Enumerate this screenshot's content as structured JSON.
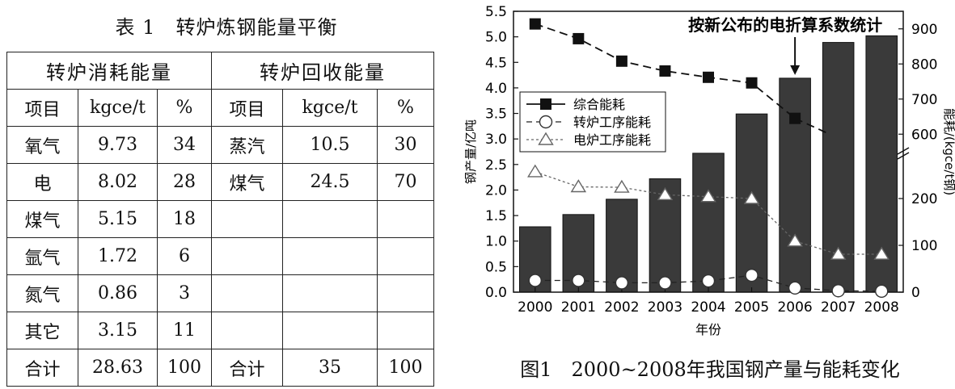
{
  "table": {
    "caption": "表 1　转炉炼钢能量平衡",
    "groups": [
      "转炉消耗能量",
      "转炉回收能量"
    ],
    "headers": [
      "项目",
      "kgce/t",
      "%",
      "项目",
      "kgce/t",
      "%"
    ],
    "rows": [
      [
        "氧气",
        "9.73",
        "34",
        "蒸汽",
        "10.5",
        "30"
      ],
      [
        "电",
        "8.02",
        "28",
        "煤气",
        "24.5",
        "70"
      ],
      [
        "煤气",
        "5.15",
        "18",
        "",
        "",
        ""
      ],
      [
        "氩气",
        "1.72",
        "6",
        "",
        "",
        ""
      ],
      [
        "氮气",
        "0.86",
        "3",
        "",
        "",
        ""
      ],
      [
        "其它",
        "3.15",
        "11",
        "",
        "",
        ""
      ],
      [
        "合计",
        "28.63",
        "100",
        "合计",
        "35",
        "100"
      ]
    ]
  },
  "figure_caption": "图1　2000~2008年我国钢产量与能耗变化",
  "chart_data": {
    "type": "bar",
    "categories": [
      "2000",
      "2001",
      "2002",
      "2003",
      "2004",
      "2005",
      "2006",
      "2007",
      "2008"
    ],
    "xlabel": "年份",
    "ylabel": "钢产量/亿吨",
    "ylabel_right": "能耗/(kgce/t钢)",
    "ylim": [
      0,
      5.5
    ],
    "yticks": [
      "0.0",
      "0.5",
      "1.0",
      "1.5",
      "2.0",
      "2.5",
      "3.0",
      "3.5",
      "4.0",
      "4.5",
      "5.0",
      "5.5"
    ],
    "y2_ticks_lower": [
      "0",
      "100",
      "200"
    ],
    "y2_ticks_upper": [
      "600",
      "700",
      "800",
      "900"
    ],
    "y2_segments": [
      {
        "range": [
          0,
          300
        ],
        "axis_frac": [
          0,
          0.5
        ]
      },
      {
        "range": [
          550,
          950
        ],
        "axis_frac": [
          0.5,
          1.0
        ]
      }
    ],
    "bars": [
      1.28,
      1.52,
      1.82,
      2.22,
      2.72,
      3.49,
      4.19,
      4.89,
      5.02
    ],
    "annotation": "按新公布的电折算系数统计",
    "annotation_category": "2006",
    "legend_position": "left-middle",
    "series": [
      {
        "name": "综合能耗",
        "marker": "filled-square",
        "values": [
          914,
          872,
          808,
          780,
          762,
          746,
          645,
          null,
          null
        ],
        "tail": [
          [
            6,
            645
          ],
          [
            6.8,
            600
          ]
        ]
      },
      {
        "name": "转炉工序能耗",
        "marker": "open-circle",
        "values": [
          25,
          25,
          20,
          20,
          24,
          36,
          9,
          3,
          2
        ]
      },
      {
        "name": "电炉工序能耗",
        "marker": "open-triangle",
        "values": [
          257,
          225,
          224,
          208,
          204,
          200,
          109,
          81,
          81
        ]
      }
    ]
  }
}
